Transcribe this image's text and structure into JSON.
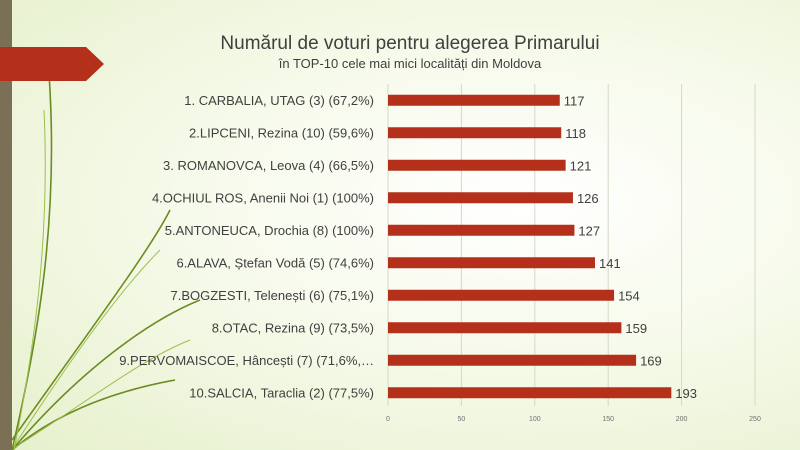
{
  "slide": {
    "title": "Numărul de voturi pentru alegerea Primarului",
    "subtitle": "în TOP-10 cele mai mici localități din Moldova",
    "accent_color": "#b5301a",
    "sidebar_color": "#7b6f55",
    "decoration": "green-leaf-lines"
  },
  "chart_data": {
    "type": "bar",
    "orientation": "horizontal",
    "title": "",
    "xlabel": "",
    "ylabel": "",
    "categories": [
      "1. CARBALIA, UTAG (3) (67,2%)",
      "2.LIPCENI, Rezina (10) (59,6%)",
      "3. ROMANOVCA, Leova (4) (66,5%)",
      "4.OCHIUL ROS, Anenii Noi (1) (100%)",
      "5.ANTONEUCA, Drochia (8) (100%)",
      "6.ALAVA, Ștefan Vodă (5) (74,6%)",
      "7.BOGZESTI, Telenești (6) (75,1%)",
      "8.OTAC, Rezina (9) (73,5%)",
      "9.PERVOMAISCOE, Hâncești (7) (71,6%,…",
      "10.SALCIA, Taraclia (2) (77,5%)"
    ],
    "values": [
      117,
      118,
      121,
      126,
      127,
      141,
      154,
      159,
      169,
      193
    ],
    "value_labels": [
      "117",
      "118",
      "121",
      "126",
      "127",
      "141",
      "154",
      "159",
      "169",
      "193"
    ],
    "xlim": [
      0,
      250
    ],
    "xticks": [
      0,
      50,
      100,
      150,
      200,
      250
    ],
    "xtick_labels": [
      "0",
      "50",
      "100",
      "150",
      "200",
      "250"
    ],
    "bar_color": "#b5301a",
    "gridlines": true,
    "legend": "none"
  }
}
